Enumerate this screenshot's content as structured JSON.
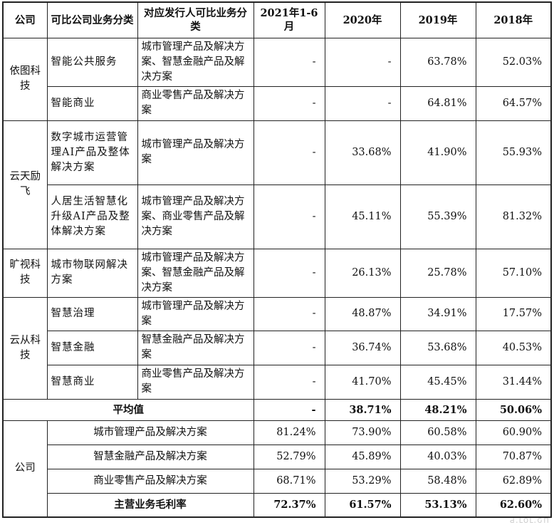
{
  "headers": [
    "公司",
    "可比公司业务分类",
    "对应发行人可比业务分类",
    "2021年1-6月",
    "2020年",
    "2019年",
    "2018年"
  ],
  "groups": [
    {
      "company": "依图科技",
      "rows": [
        {
          "biz": "智能公共服务",
          "mapped": "城市管理产品及解决方案、智慧金融产品及解决方案",
          "v2021": "-",
          "v2020": "-",
          "v2019": "63.78%",
          "v2018": "52.03%"
        },
        {
          "biz": "智能商业",
          "mapped": "商业零售产品及解决方案",
          "v2021": "-",
          "v2020": "-",
          "v2019": "64.81%",
          "v2018": "64.57%"
        }
      ]
    },
    {
      "company": "云天励飞",
      "rows": [
        {
          "biz": "数字城市运营管理AI产品及整体解决方案",
          "mapped": "城市管理产品及解决方案",
          "v2021": "-",
          "v2020": "33.68%",
          "v2019": "41.90%",
          "v2018": "55.93%"
        },
        {
          "biz": "人居生活智慧化升级AI产品及整体解决方案",
          "mapped": "城市管理产品及解决方案、商业零售产品及解决方案",
          "v2021": "-",
          "v2020": "45.11%",
          "v2019": "55.39%",
          "v2018": "81.32%"
        }
      ]
    },
    {
      "company": "旷视科技",
      "rows": [
        {
          "biz": "城市物联网解决方案",
          "mapped": "城市管理产品及解决方案、智慧金融产品及解决方案",
          "v2021": "-",
          "v2020": "26.13%",
          "v2019": "25.78%",
          "v2018": "57.10%"
        }
      ]
    },
    {
      "company": "云从科技",
      "rows": [
        {
          "biz": "智慧治理",
          "mapped": "城市管理产品及解决方案",
          "v2021": "-",
          "v2020": "48.87%",
          "v2019": "34.91%",
          "v2018": "17.57%"
        },
        {
          "biz": "智慧金融",
          "mapped": "智慧金融产品及解决方案",
          "v2021": "-",
          "v2020": "36.74%",
          "v2019": "53.68%",
          "v2018": "40.53%"
        },
        {
          "biz": "智慧商业",
          "mapped": "商业零售产品及解决方案",
          "v2021": "-",
          "v2020": "41.70%",
          "v2019": "45.45%",
          "v2018": "31.44%"
        }
      ]
    }
  ],
  "average": {
    "label": "平均值",
    "v2021": "-",
    "v2020": "38.71%",
    "v2019": "48.21%",
    "v2018": "50.06%"
  },
  "company_section": {
    "company": "公司",
    "rows": [
      {
        "label": "城市管理产品及解决方案",
        "v2021": "81.24%",
        "v2020": "73.90%",
        "v2019": "60.58%",
        "v2018": "60.90%"
      },
      {
        "label": "智慧金融产品及解决方案",
        "v2021": "52.79%",
        "v2020": "45.89%",
        "v2019": "40.03%",
        "v2018": "70.87%"
      },
      {
        "label": "商业零售产品及解决方案",
        "v2021": "68.71%",
        "v2020": "53.29%",
        "v2019": "58.48%",
        "v2018": "62.89%"
      }
    ],
    "total": {
      "label": "主营业务毛利率",
      "v2021": "72.37%",
      "v2020": "61.57%",
      "v2019": "53.13%",
      "v2018": "62.60%"
    }
  },
  "watermark": "ԁ.ւօւ.ԍп"
}
